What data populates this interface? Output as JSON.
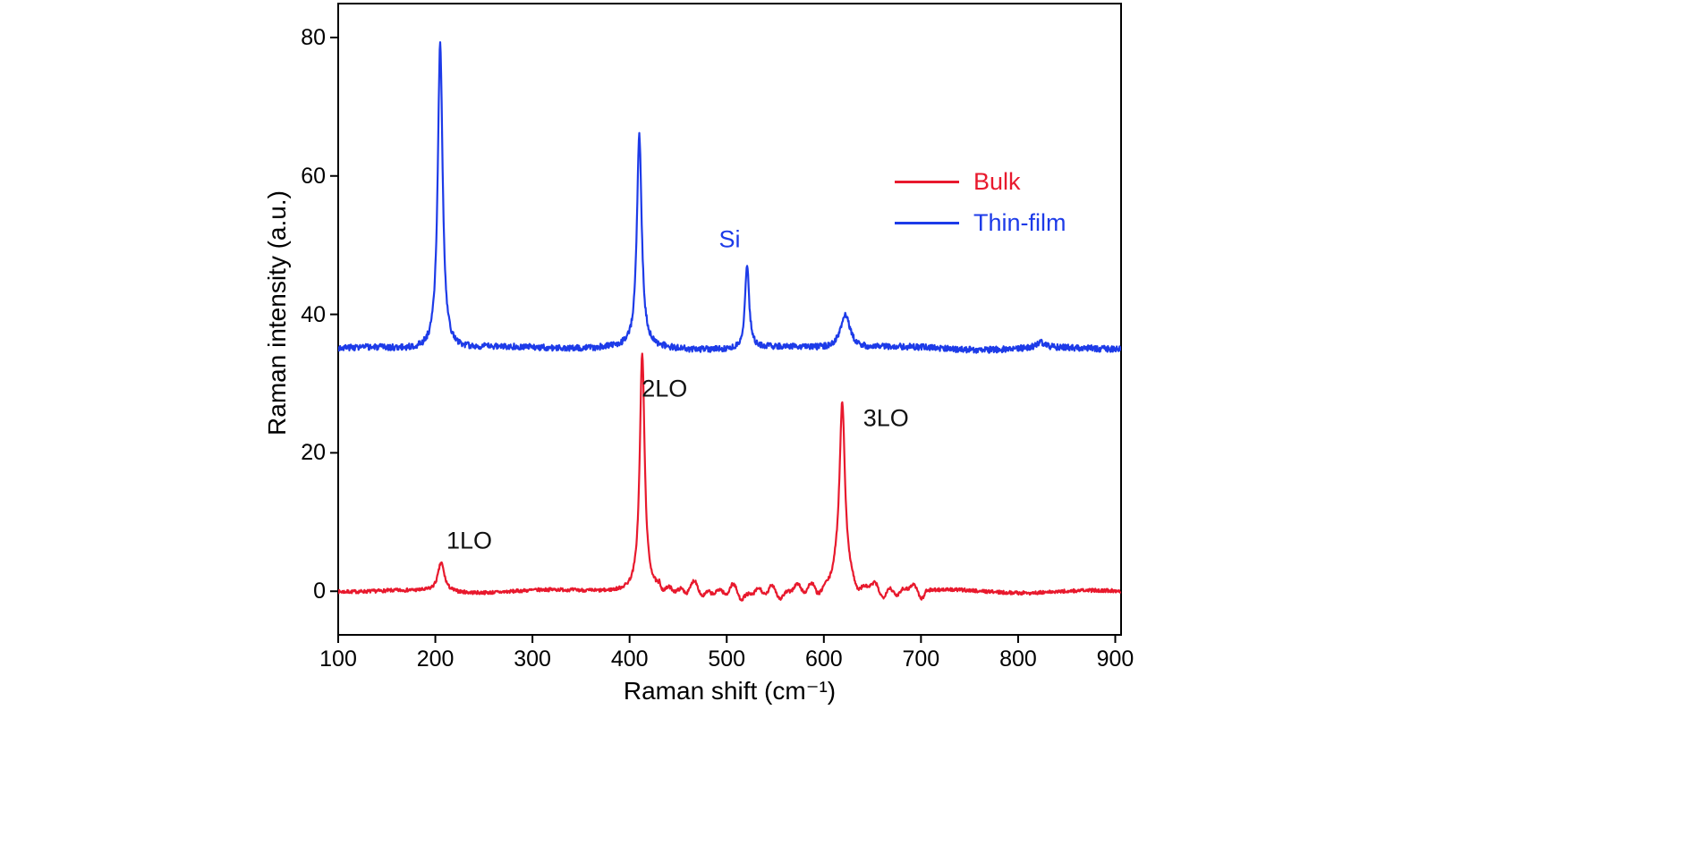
{
  "figure": {
    "background": "#ffffff",
    "frame_color": "#000000"
  },
  "chart_data": {
    "type": "line",
    "title": "",
    "xlabel": "Raman shift (cm⁻¹)",
    "ylabel": "Raman intensity (a.u.)",
    "xlim": [
      100,
      906
    ],
    "ylim": [
      -6.3,
      84.9
    ],
    "x_ticks": [
      100,
      200,
      300,
      400,
      500,
      600,
      700,
      800,
      900
    ],
    "y_ticks": [
      0,
      20,
      40,
      60,
      80
    ],
    "grid": false,
    "legend_position": "upper-right-inside",
    "series": [
      {
        "name": "Bulk",
        "color": "#e8192d",
        "baseline": 0,
        "noise": 0.25,
        "seed": 7,
        "wiggle": {
          "from": 430,
          "to": 705,
          "amp": 0.85
        },
        "peaks": [
          {
            "x": 206,
            "height": 4.2,
            "width": 4,
            "label": "1LO"
          },
          {
            "x": 413,
            "height": 34.4,
            "width": 3,
            "label": "2LO"
          },
          {
            "x": 619,
            "height": 27.8,
            "width": 3.5,
            "label": "3LO"
          }
        ]
      },
      {
        "name": "Thin-film",
        "color": "#1d3be8",
        "baseline": 35.1,
        "noise": 0.45,
        "seed": 3,
        "wiggle": null,
        "peaks": [
          {
            "x": 205,
            "height": 44.3,
            "width": 3,
            "label": ""
          },
          {
            "x": 410,
            "height": 30.7,
            "width": 3,
            "label": ""
          },
          {
            "x": 521,
            "height": 12.2,
            "width": 2.5,
            "label": "Si"
          },
          {
            "x": 622,
            "height": 4.9,
            "width": 6,
            "label": ""
          },
          {
            "x": 823,
            "height": 0.8,
            "width": 5,
            "label": ""
          }
        ]
      }
    ],
    "annotations": [
      {
        "text": "1LO",
        "x": 235,
        "y": 7.2,
        "color": "#111111"
      },
      {
        "text": "2LO",
        "x": 436,
        "y": 29.2,
        "color": "#111111"
      },
      {
        "text": "3LO",
        "x": 664,
        "y": 25.0,
        "color": "#111111"
      },
      {
        "text": "Si",
        "x": 503,
        "y": 50.8,
        "color": "#1d3be8"
      }
    ],
    "legend": [
      {
        "label": "Bulk",
        "color": "#e8192d"
      },
      {
        "label": "Thin-film",
        "color": "#1d3be8"
      }
    ]
  }
}
